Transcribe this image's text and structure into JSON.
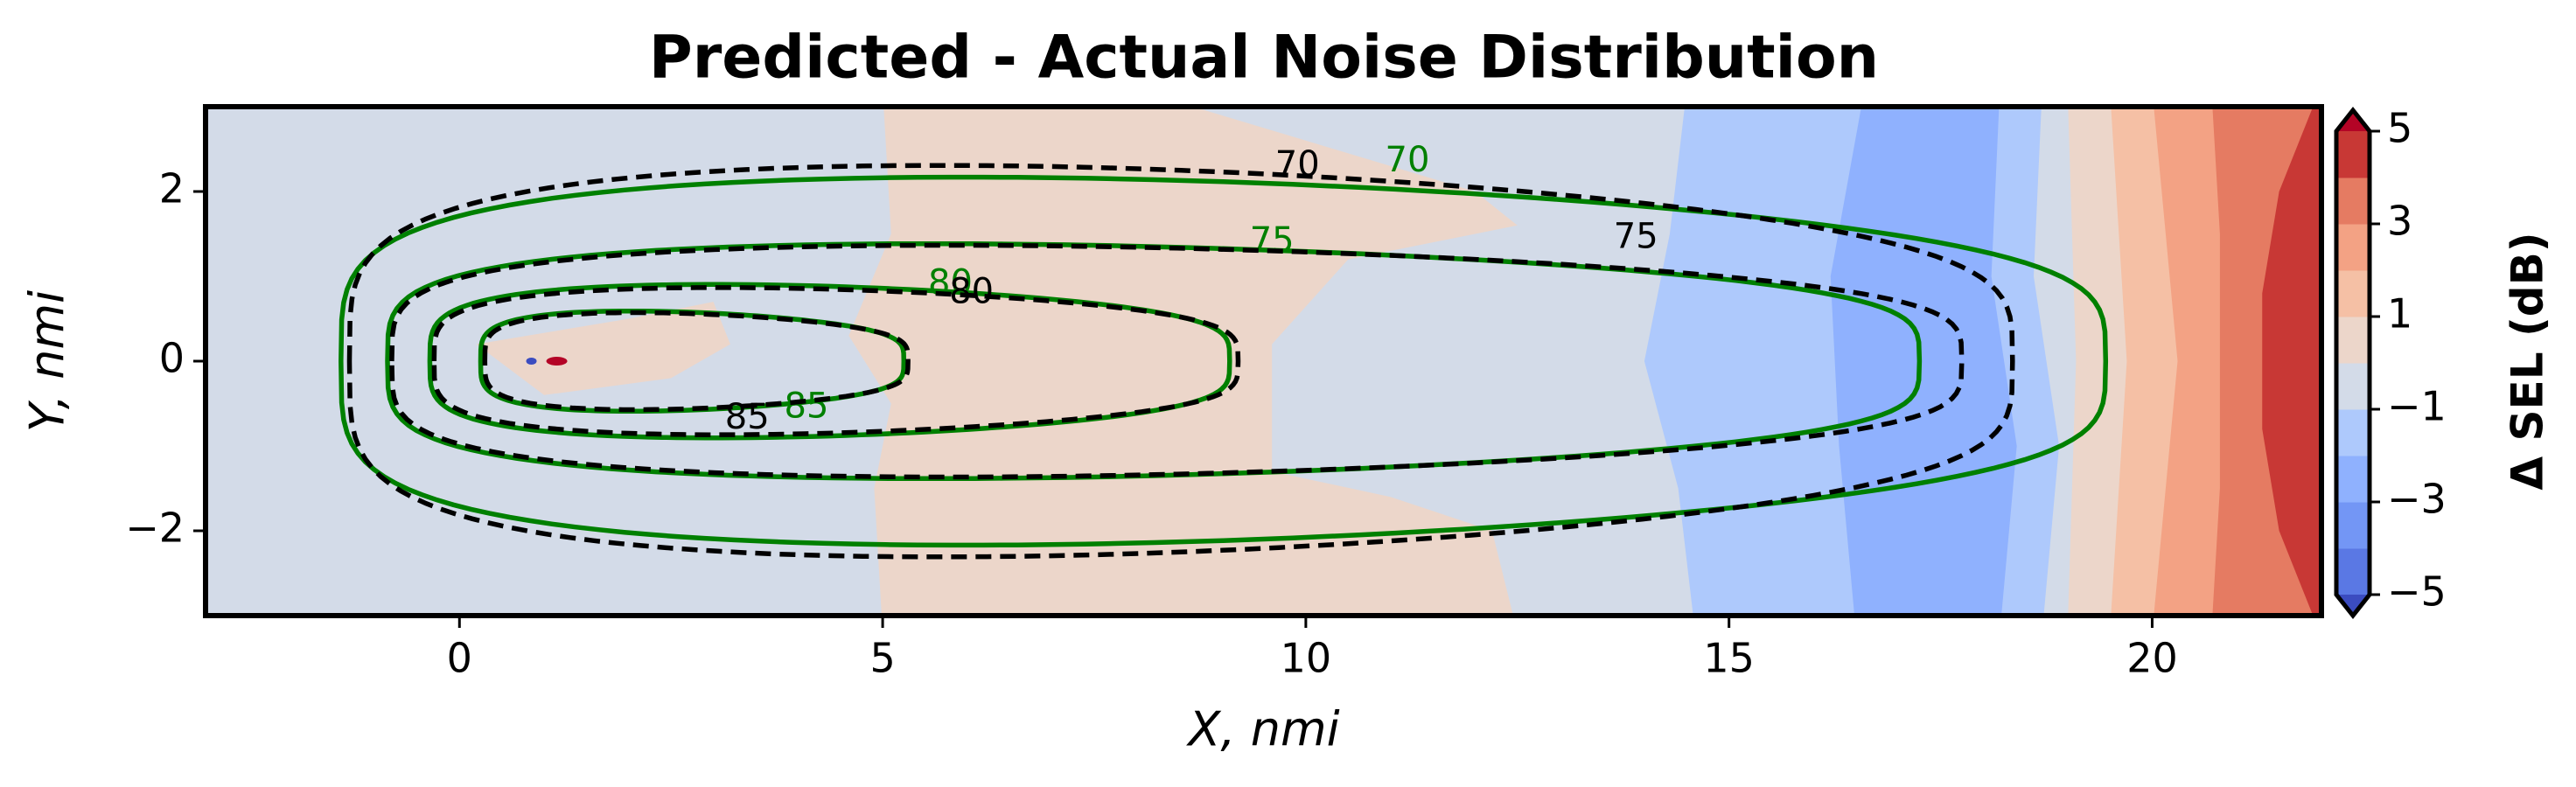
{
  "chart_data": {
    "type": "contour",
    "title": "Predicted - Actual Noise Distribution",
    "x_label": "X, nmi",
    "y_label": "Y, nmi",
    "xlim": [
      -3,
      22
    ],
    "ylim": [
      -3,
      3
    ],
    "xticks": [
      0,
      5,
      10,
      15,
      20
    ],
    "yticks": [
      {
        "value": -2,
        "label": "−2"
      },
      0,
      2
    ],
    "colorbar": {
      "label": "Δ SEL (dB)",
      "levels": [
        -5,
        -4,
        -3,
        -2,
        -1,
        0,
        1,
        2,
        3,
        4,
        5
      ],
      "colors": [
        "#5a78e4",
        "#7396f5",
        "#8fb1fe",
        "#aec9fc",
        "#d3dbe8",
        "#ecd6ca",
        "#f5c0a5",
        "#f3a284",
        "#e57b62",
        "#c83835"
      ],
      "extend_colors": [
        "#3b4cc0",
        "#b40426"
      ],
      "ticks": [
        {
          "value": -5,
          "label": "−5"
        },
        {
          "value": -3,
          "label": "−3"
        },
        {
          "value": -1,
          "label": "−1"
        },
        1,
        3,
        5
      ]
    },
    "contour_lines": [
      {
        "color": "#008000",
        "style": "solid",
        "levels": [
          70,
          75,
          80,
          85
        ]
      },
      {
        "color": "#000000",
        "style": "dashed",
        "levels": [
          70,
          75,
          80,
          85
        ]
      }
    ]
  }
}
